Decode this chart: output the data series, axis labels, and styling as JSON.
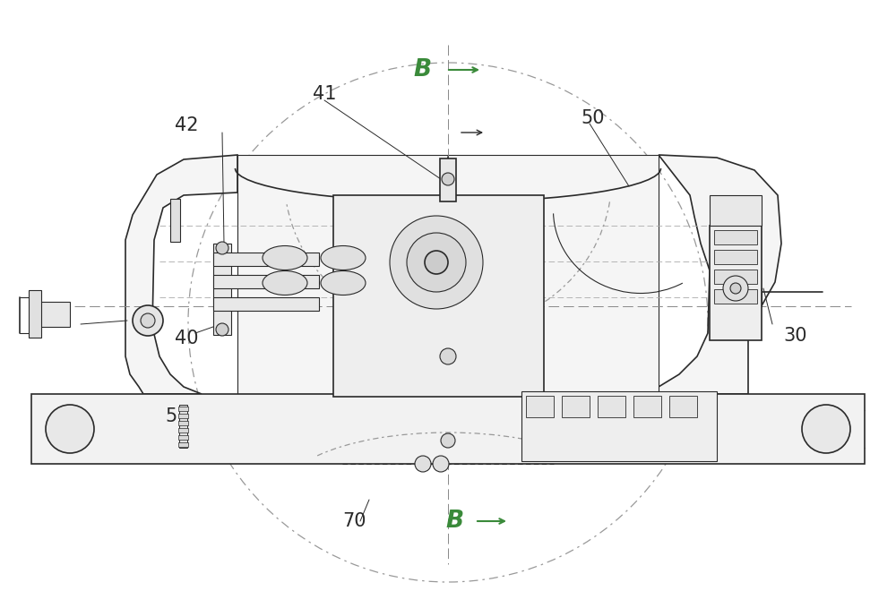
{
  "bg_color": "#ffffff",
  "line_color": "#2a2a2a",
  "label_color": "#2a2a2a",
  "B_color": "#3a8a3a",
  "figsize": [
    10.0,
    6.6
  ],
  "dpi": 100
}
